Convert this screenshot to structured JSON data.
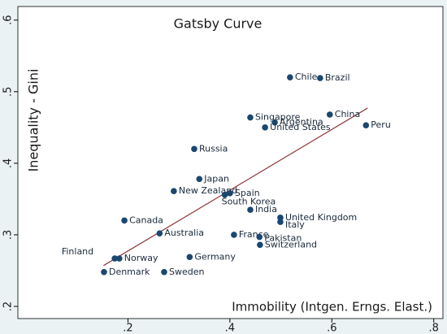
{
  "chart_data": {
    "type": "scatter",
    "title": "Gatsby Curve",
    "x_label": "Immobility (Intgen. Erngs. Elast.)",
    "y_label": "Inequality - Gini",
    "xlim": [
      -0.016,
      0.818
    ],
    "ylim": [
      0.183,
      0.619
    ],
    "xticks": [
      {
        "value": 0.2,
        "label": ".2"
      },
      {
        "value": 0.4,
        "label": ".4"
      },
      {
        "value": 0.6,
        "label": ".6"
      },
      {
        "value": 0.8,
        "label": ".8"
      }
    ],
    "yticks": [
      {
        "value": 0.2,
        "label": ".2"
      },
      {
        "value": 0.3,
        "label": ".3"
      },
      {
        "value": 0.4,
        "label": ".4"
      },
      {
        "value": 0.5,
        "label": ".5"
      },
      {
        "value": 0.6,
        "label": ".6"
      }
    ],
    "color": "#1a476f",
    "labels": [
      "Chile",
      "Brazil",
      "China",
      "Peru",
      "Singapore",
      "Argentina",
      "United States",
      "Russia",
      "Japan",
      "New Zealand",
      "Spain",
      "South Korea",
      "India",
      "United Kingdom",
      "Italy",
      "Canada",
      "Australia",
      "France",
      "Pakistan",
      "Switzerland",
      "Finland",
      "Norway",
      "Germany",
      "Denmark",
      "Sweden"
    ],
    "x": [
      0.518,
      0.577,
      0.596,
      0.667,
      0.44,
      0.488,
      0.469,
      0.33,
      0.34,
      0.29,
      0.4,
      0.39,
      0.44,
      0.499,
      0.499,
      0.193,
      0.262,
      0.408,
      0.458,
      0.459,
      0.174,
      0.183,
      0.321,
      0.153,
      0.271
    ],
    "y": [
      0.52,
      0.519,
      0.468,
      0.453,
      0.464,
      0.457,
      0.45,
      0.42,
      0.378,
      0.361,
      0.358,
      0.356,
      0.335,
      0.324,
      0.318,
      0.32,
      0.302,
      0.3,
      0.297,
      0.286,
      0.267,
      0.267,
      0.269,
      0.248,
      0.248
    ],
    "fit_line": {
      "color": "#90353b",
      "x": [
        0.152,
        0.67
      ],
      "y": [
        0.257,
        0.477
      ]
    }
  }
}
